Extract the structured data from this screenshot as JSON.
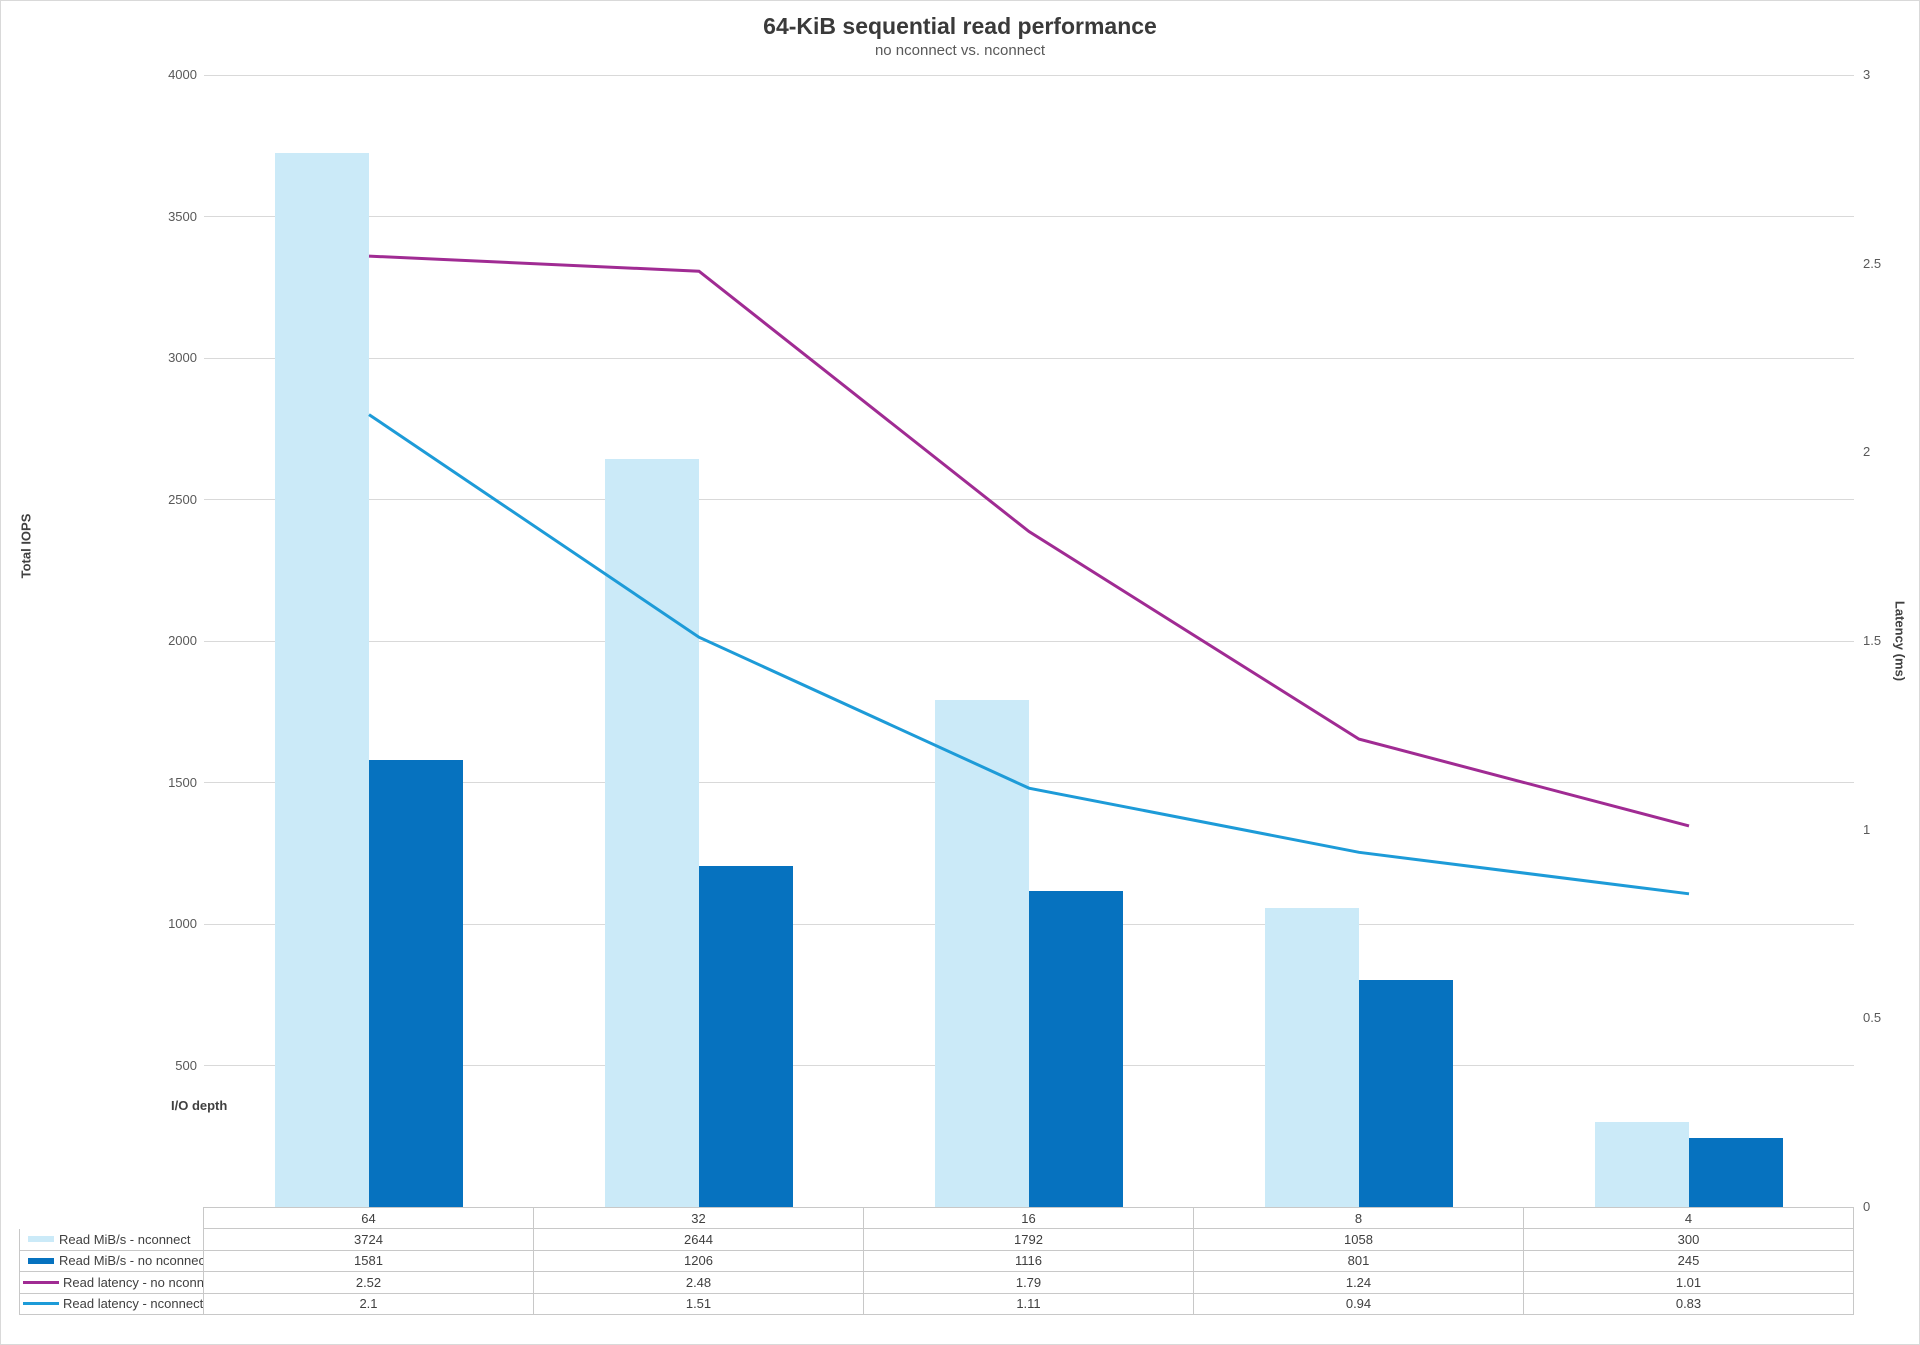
{
  "title": {
    "text": "64-KiB sequential read performance",
    "subtitle": "no nconnect vs. nconnect"
  },
  "chart_data": {
    "type": "combo",
    "categories": [
      "64",
      "32",
      "16",
      "8",
      "4"
    ],
    "series": [
      {
        "name": "Read MiB/s - nconnect",
        "type": "bar",
        "axis": "left",
        "color": "#CBEAF8",
        "values": [
          3724,
          2644,
          1792,
          1058,
          300
        ],
        "display": [
          "3724",
          "2644",
          "1792",
          "1058",
          "300"
        ]
      },
      {
        "name": "Read MiB/s - no nconnect",
        "type": "bar",
        "axis": "left",
        "color": "#0672BF",
        "values": [
          1581,
          1206,
          1116,
          801,
          245
        ],
        "display": [
          "1581",
          "1206",
          "1116",
          "801",
          "245"
        ]
      },
      {
        "name": "Read latency - no nconnect",
        "type": "line",
        "axis": "right",
        "color": "#A02B93",
        "values": [
          2.52,
          2.48,
          1.79,
          1.24,
          1.01
        ],
        "display": [
          "2.52",
          "2.48",
          "1.79",
          "1.24",
          "1.01"
        ]
      },
      {
        "name": "Read latency - nconnect",
        "type": "line",
        "axis": "right",
        "color": "#1D9BD8",
        "values": [
          2.1,
          1.51,
          1.11,
          0.94,
          0.83
        ],
        "display": [
          "2.1",
          "1.51",
          "1.11",
          "0.94",
          "0.83"
        ]
      }
    ],
    "left_axis": {
      "title": "Total IOPS",
      "min": 0,
      "max": 4000,
      "major": 500,
      "tick_labels": [
        "4000",
        "3500",
        "3000",
        "2500",
        "2000",
        "1500",
        "1000",
        "500"
      ]
    },
    "right_axis": {
      "title": "Latency (ms)",
      "min": 0,
      "max": 3,
      "major": 0.5,
      "tick_labels": [
        "3",
        "2.5",
        "2",
        "1.5",
        "1",
        "0.5",
        "0"
      ]
    },
    "x_axis": {
      "title": "I/O depth"
    },
    "legend_position": "data-table",
    "grid": true,
    "gridline_color": "#d9d9d9",
    "table_border_color": "#c8c8c8"
  }
}
